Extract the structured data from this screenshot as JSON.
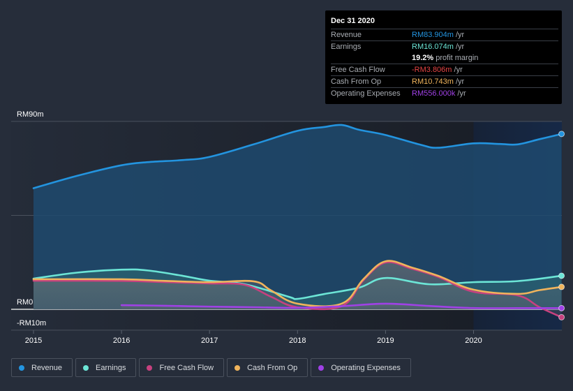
{
  "tooltip": {
    "date": "Dec 31 2020",
    "rows": [
      {
        "label": "Revenue",
        "value": "RM83.904m",
        "unit": " /yr",
        "color": "#2394df"
      },
      {
        "label": "Earnings",
        "value": "RM16.074m",
        "unit": " /yr",
        "color": "#6ce5d6"
      },
      {
        "label": "",
        "value": "19.2%",
        "unit": " profit margin",
        "color": "#ffffff"
      },
      {
        "label": "Free Cash Flow",
        "value": "-RM3.806m",
        "unit": " /yr",
        "color": "#e64545"
      },
      {
        "label": "Cash From Op",
        "value": "RM10.743m",
        "unit": " /yr",
        "color": "#f0b45c"
      },
      {
        "label": "Operating Expenses",
        "value": "RM556.000k",
        "unit": " /yr",
        "color": "#a041e6"
      }
    ]
  },
  "legend": [
    {
      "label": "Revenue",
      "color": "#2394df"
    },
    {
      "label": "Earnings",
      "color": "#6ce5d6"
    },
    {
      "label": "Free Cash Flow",
      "color": "#c7417f"
    },
    {
      "label": "Cash From Op",
      "color": "#f0b45c"
    },
    {
      "label": "Operating Expenses",
      "color": "#a041e6"
    }
  ],
  "chart_data": {
    "type": "area",
    "title": "",
    "xlabel": "",
    "ylabel": "",
    "x_ticks": [
      "2015",
      "2016",
      "2017",
      "2018",
      "2019",
      "2020"
    ],
    "x_range": [
      2014.75,
      2021.0
    ],
    "y_ticks": [
      {
        "value": 90,
        "label": "RM90m"
      },
      {
        "value": 45,
        "label": ""
      },
      {
        "value": 0,
        "label": "RM0"
      },
      {
        "value": -10,
        "label": "-RM10m"
      }
    ],
    "ylim": [
      -10,
      90
    ],
    "unit": "RM m",
    "forecast_shade_from": 2020.0,
    "series": [
      {
        "name": "Revenue",
        "color": "#2394df",
        "fill": "#1f4a6e",
        "points": [
          [
            2015,
            58
          ],
          [
            2015.5,
            64
          ],
          [
            2016,
            69
          ],
          [
            2016.3,
            70.5
          ],
          [
            2016.7,
            71.5
          ],
          [
            2017,
            73
          ],
          [
            2017.5,
            79
          ],
          [
            2018,
            85.5
          ],
          [
            2018.3,
            87.3
          ],
          [
            2018.5,
            88.3
          ],
          [
            2018.7,
            86
          ],
          [
            2019,
            83.5
          ],
          [
            2019.4,
            78.8
          ],
          [
            2019.6,
            77.4
          ],
          [
            2020,
            79.5
          ],
          [
            2020.3,
            79.2
          ],
          [
            2020.5,
            79
          ],
          [
            2020.75,
            81.5
          ],
          [
            2021,
            84
          ]
        ]
      },
      {
        "name": "Earnings",
        "color": "#6ce5d6",
        "fill": "#2a6b73",
        "points": [
          [
            2015,
            14.7
          ],
          [
            2015.5,
            17.6
          ],
          [
            2016,
            19
          ],
          [
            2016.3,
            18.6
          ],
          [
            2016.7,
            16
          ],
          [
            2017,
            13.7
          ],
          [
            2017.4,
            12
          ],
          [
            2017.9,
            6
          ],
          [
            2018,
            5
          ],
          [
            2018.3,
            7.3
          ],
          [
            2018.7,
            10.4
          ],
          [
            2019,
            15
          ],
          [
            2019.5,
            12
          ],
          [
            2020,
            13
          ],
          [
            2020.5,
            13.5
          ],
          [
            2021,
            16.07
          ]
        ]
      },
      {
        "name": "Free Cash Flow",
        "color": "#c7417f",
        "fill": "#7a4a5d",
        "points": [
          [
            2015,
            13.7
          ],
          [
            2016,
            13.6
          ],
          [
            2016.5,
            13
          ],
          [
            2017,
            12.4
          ],
          [
            2017.4,
            11.7
          ],
          [
            2017.7,
            6
          ],
          [
            2018,
            1
          ],
          [
            2018.5,
            1.5
          ],
          [
            2018.75,
            14
          ],
          [
            2019,
            22.4
          ],
          [
            2019.3,
            19.4
          ],
          [
            2019.6,
            15.5
          ],
          [
            2020,
            8.4
          ],
          [
            2020.5,
            6.7
          ],
          [
            2020.75,
            1
          ],
          [
            2021,
            -3.8
          ]
        ]
      },
      {
        "name": "Cash From Op",
        "color": "#f0b45c",
        "fill": "#7d6b5e",
        "points": [
          [
            2015,
            14.4
          ],
          [
            2016,
            14.4
          ],
          [
            2016.5,
            13.6
          ],
          [
            2017,
            13
          ],
          [
            2017.5,
            13.4
          ],
          [
            2017.7,
            9
          ],
          [
            2018,
            2.7
          ],
          [
            2018.5,
            2.7
          ],
          [
            2018.75,
            14.5
          ],
          [
            2019,
            23
          ],
          [
            2019.3,
            20
          ],
          [
            2019.6,
            16
          ],
          [
            2020,
            9.4
          ],
          [
            2020.5,
            7.4
          ],
          [
            2020.75,
            9.2
          ],
          [
            2021,
            10.74
          ]
        ]
      },
      {
        "name": "Operating Expenses",
        "color": "#a041e6",
        "fill": "#5a3f7a",
        "points": [
          [
            2016,
            2
          ],
          [
            2016.5,
            1.7
          ],
          [
            2017,
            1.3
          ],
          [
            2017.5,
            1
          ],
          [
            2018,
            0.7
          ],
          [
            2018.5,
            1.5
          ],
          [
            2019,
            2.7
          ],
          [
            2019.5,
            1.6
          ],
          [
            2020,
            0.6
          ],
          [
            2020.5,
            0.55
          ],
          [
            2021,
            0.56
          ]
        ]
      }
    ]
  }
}
